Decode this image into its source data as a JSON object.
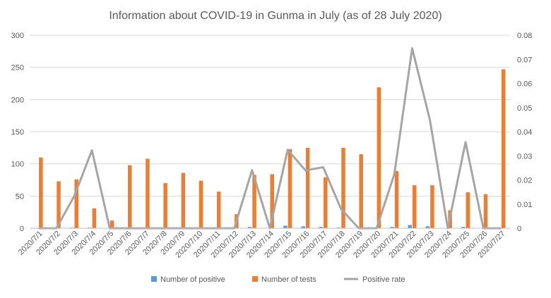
{
  "chart_data": {
    "type": "bar",
    "title": "Information about COVID-19 in Gunma in July (as of 28 July 2020)",
    "categories": [
      "2020/7/1",
      "2020/7/2",
      "2020/7/3",
      "2020/7/4",
      "2020/7/5",
      "2020/7/6",
      "2020/7/7",
      "2020/7/8",
      "2020/7/9",
      "2020/7/10",
      "2020/7/11",
      "2020/7/12",
      "2020/7/13",
      "2020/7/14",
      "2020/7/15",
      "2020/7/16",
      "2020/7/17",
      "2020/7/18",
      "2020/7/19",
      "2020/7/20",
      "2020/7/21",
      "2020/7/22",
      "2020/7/23",
      "2020/7/24",
      "2020/7/25",
      "2020/7/26",
      "2020/7/27"
    ],
    "y_left": {
      "range": [
        0,
        300
      ],
      "ticks": [
        "0",
        "50",
        "100",
        "150",
        "200",
        "250",
        "300"
      ]
    },
    "y_right": {
      "range": [
        0,
        0.08
      ],
      "ticks": [
        "0",
        "0.01",
        "0.02",
        "0.03",
        "0.04",
        "0.05",
        "0.06",
        "0.07",
        "0.08"
      ]
    },
    "grid": true,
    "legend_position": "bottom",
    "series": [
      {
        "name": "Number of positive",
        "type": "bar",
        "axis": "left",
        "color": "#5B9BD5",
        "values": [
          0,
          0,
          1,
          1,
          0,
          0,
          0,
          0,
          0,
          0,
          0,
          0,
          2,
          0,
          4,
          3,
          2,
          1,
          0,
          0,
          2,
          5,
          3,
          0,
          2,
          0,
          0
        ]
      },
      {
        "name": "Number of tests",
        "type": "bar",
        "axis": "left",
        "color": "#ED7D31",
        "values": [
          110,
          73,
          76,
          31,
          12,
          98,
          108,
          70,
          86,
          74,
          57,
          22,
          83,
          84,
          123,
          125,
          79,
          125,
          115,
          219,
          89,
          67,
          67,
          28,
          56,
          53,
          247
        ]
      },
      {
        "name": "Positive rate",
        "type": "line",
        "axis": "right",
        "color": "#A5A5A5",
        "values": [
          0,
          0,
          0.0132,
          0.0323,
          0,
          0,
          0,
          0,
          0,
          0,
          0,
          0,
          0.0241,
          0,
          0.0325,
          0.024,
          0.0253,
          0.008,
          0,
          0,
          0.0225,
          0.0746,
          0.0448,
          0,
          0.0357,
          0,
          0
        ]
      }
    ]
  }
}
